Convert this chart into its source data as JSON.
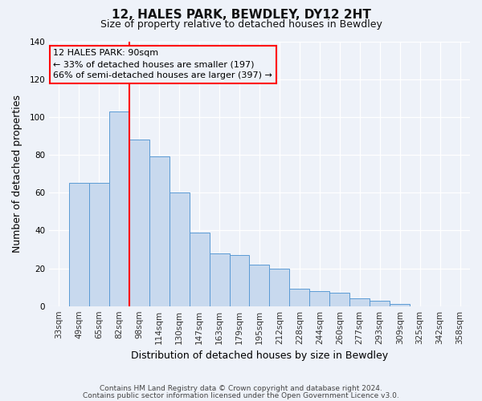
{
  "title": "12, HALES PARK, BEWDLEY, DY12 2HT",
  "subtitle": "Size of property relative to detached houses in Bewdley",
  "xlabel": "Distribution of detached houses by size in Bewdley",
  "ylabel": "Number of detached properties",
  "categories": [
    "33sqm",
    "49sqm",
    "65sqm",
    "82sqm",
    "98sqm",
    "114sqm",
    "130sqm",
    "147sqm",
    "163sqm",
    "179sqm",
    "195sqm",
    "212sqm",
    "228sqm",
    "244sqm",
    "260sqm",
    "277sqm",
    "293sqm",
    "309sqm",
    "325sqm",
    "342sqm",
    "358sqm"
  ],
  "values": [
    0,
    65,
    65,
    103,
    88,
    79,
    60,
    39,
    28,
    27,
    22,
    20,
    9,
    8,
    7,
    4,
    3,
    1,
    0,
    0,
    0
  ],
  "bar_color": "#c8d9ee",
  "bar_edge_color": "#5b9bd5",
  "ylim": [
    0,
    140
  ],
  "yticks": [
    0,
    20,
    40,
    60,
    80,
    100,
    120,
    140
  ],
  "red_line_index": 3,
  "annotation_title": "12 HALES PARK: 90sqm",
  "annotation_line1": "← 33% of detached houses are smaller (197)",
  "annotation_line2": "66% of semi-detached houses are larger (397) →",
  "footer1": "Contains HM Land Registry data © Crown copyright and database right 2024.",
  "footer2": "Contains public sector information licensed under the Open Government Licence v3.0.",
  "background_color": "#eef2f9",
  "grid_color": "#ffffff",
  "tick_label_color": "#333333",
  "title_fontsize": 11,
  "subtitle_fontsize": 9,
  "axis_label_fontsize": 9,
  "tick_fontsize": 7.5,
  "annotation_fontsize": 8,
  "footer_fontsize": 6.5
}
